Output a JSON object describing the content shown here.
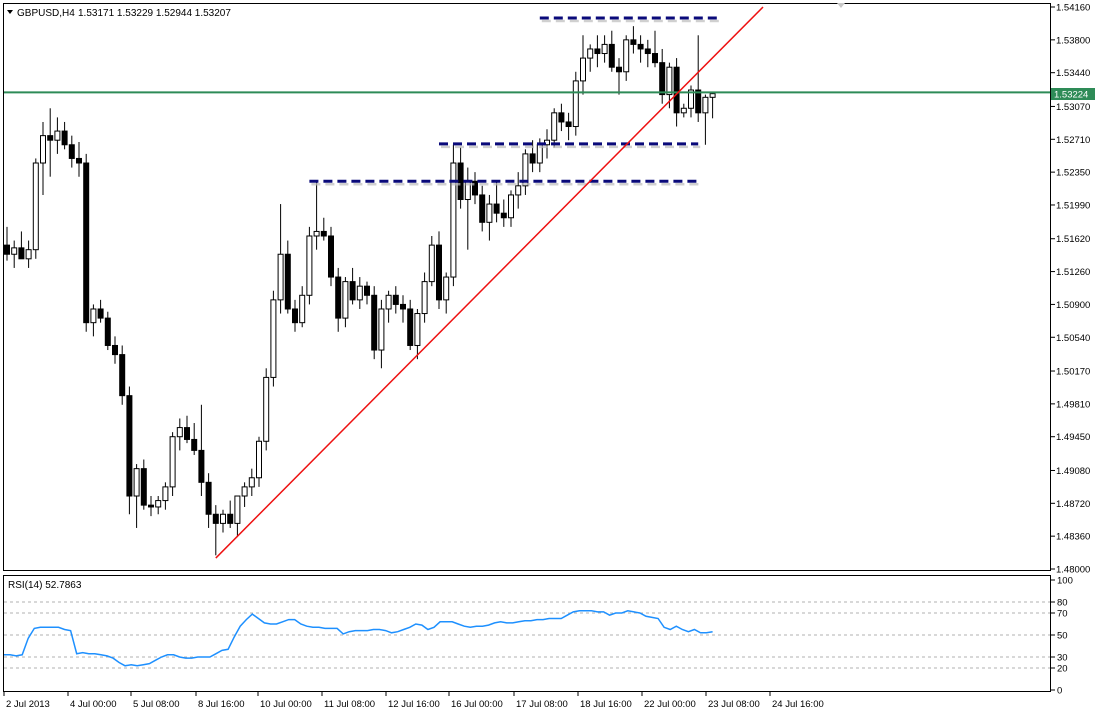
{
  "chart_header": {
    "symbol": "GBPUSD,H4",
    "ohlc": "1.53171 1.53229 1.52944 1.53207",
    "menu_icon": "triangle-down-icon"
  },
  "current_price": "1.53224",
  "rsi_header": "RSI(14) 52.7863",
  "colors": {
    "background": "#ffffff",
    "bull_candle": "#ffffff",
    "bear_candle": "#000000",
    "price_line": "#2e8b57",
    "trend_line": "#ee1111",
    "level_line": "#0a0a7a",
    "rsi_line": "#1e90ff"
  },
  "chart_data": [
    {
      "type": "candlestick",
      "symbol": "GBPUSD",
      "timeframe": "H4",
      "ylim": [
        1.48,
        1.5416
      ],
      "y_ticks": [
        "1.54160",
        "1.53800",
        "1.53440",
        "1.53070",
        "1.52710",
        "1.52350",
        "1.51990",
        "1.51620",
        "1.51260",
        "1.50900",
        "1.50540",
        "1.50170",
        "1.49810",
        "1.49450",
        "1.49080",
        "1.48720",
        "1.48360",
        "1.48000"
      ],
      "x_ticks": [
        "2 Jul 2013",
        "4 Jul 00:00",
        "5 Jul 08:00",
        "8 Jul 16:00",
        "10 Jul 00:00",
        "11 Jul 08:00",
        "12 Jul 16:00",
        "16 Jul 00:00",
        "17 Jul 08:00",
        "18 Jul 16:00",
        "22 Jul 00:00",
        "23 Jul 08:00",
        "24 Jul 16:00"
      ],
      "candles": [
        [
          1.5155,
          1.5175,
          1.5138,
          1.5145
        ],
        [
          1.5145,
          1.516,
          1.513,
          1.5152
        ],
        [
          1.5152,
          1.517,
          1.514,
          1.514
        ],
        [
          1.514,
          1.516,
          1.513,
          1.515
        ],
        [
          1.515,
          1.525,
          1.514,
          1.5245
        ],
        [
          1.5245,
          1.529,
          1.521,
          1.5275
        ],
        [
          1.5275,
          1.5305,
          1.523,
          1.527
        ],
        [
          1.527,
          1.5295,
          1.5255,
          1.528
        ],
        [
          1.528,
          1.529,
          1.526,
          1.5265
        ],
        [
          1.5265,
          1.5275,
          1.524,
          1.525
        ],
        [
          1.525,
          1.5268,
          1.523,
          1.5245
        ],
        [
          1.5245,
          1.5255,
          1.506,
          1.507
        ],
        [
          1.507,
          1.509,
          1.5055,
          1.5085
        ],
        [
          1.5085,
          1.5095,
          1.507,
          1.5075
        ],
        [
          1.5075,
          1.5082,
          1.504,
          1.5045
        ],
        [
          1.5045,
          1.5055,
          1.5025,
          1.5035
        ],
        [
          1.5035,
          1.5045,
          1.498,
          1.499
        ],
        [
          1.499,
          1.5,
          1.486,
          1.488
        ],
        [
          1.488,
          1.4915,
          1.4845,
          1.491
        ],
        [
          1.491,
          1.492,
          1.4865,
          1.487
        ],
        [
          1.487,
          1.488,
          1.4858,
          1.4868
        ],
        [
          1.4868,
          1.488,
          1.486,
          1.4875
        ],
        [
          1.4875,
          1.4895,
          1.4865,
          1.489
        ],
        [
          1.489,
          1.495,
          1.488,
          1.4945
        ],
        [
          1.4945,
          1.4965,
          1.493,
          1.4955
        ],
        [
          1.4955,
          1.4968,
          1.4938,
          1.4942
        ],
        [
          1.4942,
          1.496,
          1.4925,
          1.493
        ],
        [
          1.493,
          1.498,
          1.488,
          1.4895
        ],
        [
          1.4895,
          1.4905,
          1.4845,
          1.486
        ],
        [
          1.486,
          1.487,
          1.4815,
          1.485
        ],
        [
          1.485,
          1.4865,
          1.484,
          1.486
        ],
        [
          1.486,
          1.4875,
          1.4845,
          1.485
        ],
        [
          1.485,
          1.488,
          1.4835,
          1.488
        ],
        [
          1.488,
          1.4895,
          1.4868,
          1.489
        ],
        [
          1.489,
          1.491,
          1.488,
          1.49
        ],
        [
          1.49,
          1.4945,
          1.489,
          1.494
        ],
        [
          1.494,
          1.502,
          1.493,
          1.501
        ],
        [
          1.501,
          1.5105,
          1.5,
          1.5095
        ],
        [
          1.5095,
          1.52,
          1.508,
          1.5145
        ],
        [
          1.5145,
          1.516,
          1.508,
          1.5085
        ],
        [
          1.5085,
          1.5095,
          1.506,
          1.507
        ],
        [
          1.507,
          1.511,
          1.5065,
          1.51
        ],
        [
          1.51,
          1.5175,
          1.509,
          1.5165
        ],
        [
          1.5165,
          1.5225,
          1.515,
          1.517
        ],
        [
          1.517,
          1.5185,
          1.516,
          1.5165
        ],
        [
          1.5165,
          1.5175,
          1.511,
          1.512
        ],
        [
          1.512,
          1.513,
          1.506,
          1.5075
        ],
        [
          1.5075,
          1.512,
          1.5065,
          1.5115
        ],
        [
          1.5115,
          1.513,
          1.509,
          1.5095
        ],
        [
          1.5095,
          1.512,
          1.5085,
          1.511
        ],
        [
          1.511,
          1.5115,
          1.509,
          1.51
        ],
        [
          1.51,
          1.511,
          1.503,
          1.504
        ],
        [
          1.504,
          1.5095,
          1.502,
          1.5085
        ],
        [
          1.5085,
          1.5105,
          1.507,
          1.51
        ],
        [
          1.51,
          1.511,
          1.508,
          1.509
        ],
        [
          1.509,
          1.51,
          1.507,
          1.5085
        ],
        [
          1.5085,
          1.5095,
          1.504,
          1.5045
        ],
        [
          1.5045,
          1.5085,
          1.503,
          1.508
        ],
        [
          1.508,
          1.5125,
          1.507,
          1.5115
        ],
        [
          1.5115,
          1.5165,
          1.511,
          1.5155
        ],
        [
          1.5155,
          1.517,
          1.5085,
          1.5095
        ],
        [
          1.5095,
          1.5125,
          1.508,
          1.512
        ],
        [
          1.512,
          1.5265,
          1.511,
          1.5245
        ],
        [
          1.5245,
          1.5262,
          1.5195,
          1.5205
        ],
        [
          1.5205,
          1.524,
          1.515,
          1.5225
        ],
        [
          1.5225,
          1.5235,
          1.52,
          1.521
        ],
        [
          1.521,
          1.522,
          1.517,
          1.518
        ],
        [
          1.518,
          1.521,
          1.516,
          1.52
        ],
        [
          1.52,
          1.5225,
          1.518,
          1.519
        ],
        [
          1.519,
          1.5205,
          1.5175,
          1.5185
        ],
        [
          1.5185,
          1.5215,
          1.5175,
          1.521
        ],
        [
          1.521,
          1.5235,
          1.5195,
          1.522
        ],
        [
          1.522,
          1.526,
          1.521,
          1.5255
        ],
        [
          1.5255,
          1.527,
          1.5235,
          1.5245
        ],
        [
          1.5245,
          1.5272,
          1.5235,
          1.5265
        ],
        [
          1.5265,
          1.5282,
          1.525,
          1.527
        ],
        [
          1.527,
          1.5305,
          1.5262,
          1.53
        ],
        [
          1.53,
          1.531,
          1.528,
          1.529
        ],
        [
          1.529,
          1.53,
          1.527,
          1.5285
        ],
        [
          1.5285,
          1.5345,
          1.5275,
          1.5335
        ],
        [
          1.5335,
          1.5385,
          1.532,
          1.536
        ],
        [
          1.536,
          1.5375,
          1.5345,
          1.537
        ],
        [
          1.537,
          1.5385,
          1.535,
          1.5365
        ],
        [
          1.5365,
          1.5385,
          1.5355,
          1.5375
        ],
        [
          1.5375,
          1.539,
          1.5345,
          1.535
        ],
        [
          1.535,
          1.536,
          1.532,
          1.5345
        ],
        [
          1.5345,
          1.5385,
          1.5335,
          1.538
        ],
        [
          1.538,
          1.5395,
          1.5365,
          1.5375
        ],
        [
          1.5375,
          1.5385,
          1.5355,
          1.537
        ],
        [
          1.537,
          1.538,
          1.535,
          1.5365
        ],
        [
          1.5365,
          1.539,
          1.535,
          1.5355
        ],
        [
          1.5355,
          1.537,
          1.531,
          1.532
        ],
        [
          1.532,
          1.5355,
          1.5305,
          1.535
        ],
        [
          1.535,
          1.536,
          1.5285,
          1.53
        ],
        [
          1.53,
          1.531,
          1.5295,
          1.5305
        ],
        [
          1.5305,
          1.533,
          1.5295,
          1.5325
        ],
        [
          1.5325,
          1.5385,
          1.529,
          1.53
        ],
        [
          1.53,
          1.532,
          1.5265,
          1.5317
        ],
        [
          1.5317,
          1.5323,
          1.5294,
          1.5321
        ]
      ],
      "lines": {
        "current_price": 1.53224,
        "dashed_levels": [
          {
            "price": 1.5404,
            "from_bar": 74,
            "to_bar": 99
          },
          {
            "price": 1.5266,
            "from_bar": 60,
            "to_bar": 96
          },
          {
            "price": 1.5225,
            "from_bar": 42,
            "to_bar": 96
          }
        ],
        "trend": {
          "from_bar": 29,
          "from_price": 1.4812,
          "to_bar": 105,
          "to_price": 1.5416
        }
      }
    },
    {
      "type": "line",
      "indicator": "RSI(14)",
      "value": 52.7863,
      "ylim": [
        0,
        100
      ],
      "y_ticks": [
        100,
        80,
        70,
        50,
        30,
        20,
        0
      ],
      "levels": [
        80,
        70,
        50,
        30,
        20
      ],
      "values": [
        32,
        32,
        31,
        32,
        47,
        56,
        57,
        57,
        57,
        57,
        55,
        54,
        33,
        34,
        33,
        33,
        32,
        31,
        29,
        25,
        22,
        23,
        22,
        23,
        24,
        27,
        30,
        32,
        32,
        30,
        29,
        29,
        30,
        30,
        30,
        33,
        36,
        37,
        48,
        58,
        64,
        69,
        65,
        61,
        60,
        60,
        62,
        64,
        64,
        60,
        58,
        57,
        57,
        56,
        56,
        56,
        51,
        53,
        54,
        54,
        54,
        55,
        55,
        54,
        52,
        53,
        55,
        57,
        60,
        59,
        55,
        57,
        62,
        62,
        62,
        60,
        58,
        57,
        58,
        58,
        59,
        61,
        62,
        61,
        61,
        62,
        63,
        63,
        64,
        64,
        65,
        65,
        65,
        68,
        71,
        72,
        72,
        72,
        71,
        71,
        68,
        70,
        70,
        72,
        71,
        70,
        67,
        66,
        65,
        57,
        55,
        58,
        55,
        53,
        55,
        52,
        52,
        53
      ]
    }
  ]
}
